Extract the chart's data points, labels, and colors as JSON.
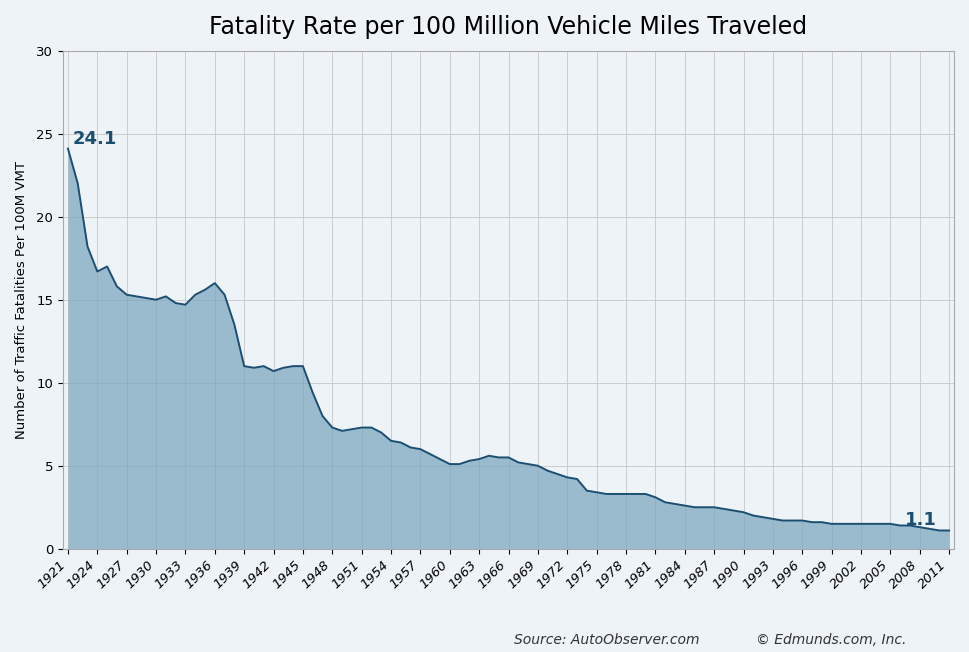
{
  "title": "Fatality Rate per 100 Million Vehicle Miles Traveled",
  "ylabel": "Number of Traffic Fatalities Per 100M VMT",
  "source_text": "Source: AutoObserver.com",
  "copyright_text": "© Edmunds.com, Inc.",
  "line_color": "#1B4F72",
  "fill_color": "#7EA7C0",
  "fill_alpha": 0.75,
  "bg_color": "#EEF3F8",
  "plot_bg_color": "#EEF3F8",
  "grid_color": "#CCCCCC",
  "annotation_color": "#1B4F72",
  "ylim": [
    0,
    30
  ],
  "yticks": [
    0,
    5,
    10,
    15,
    20,
    25,
    30
  ],
  "years": [
    1921,
    1922,
    1923,
    1924,
    1925,
    1926,
    1927,
    1928,
    1929,
    1930,
    1931,
    1932,
    1933,
    1934,
    1935,
    1936,
    1937,
    1938,
    1939,
    1940,
    1941,
    1942,
    1943,
    1944,
    1945,
    1946,
    1947,
    1948,
    1949,
    1950,
    1951,
    1952,
    1953,
    1954,
    1955,
    1956,
    1957,
    1958,
    1959,
    1960,
    1961,
    1962,
    1963,
    1964,
    1965,
    1966,
    1967,
    1968,
    1969,
    1970,
    1971,
    1972,
    1973,
    1974,
    1975,
    1976,
    1977,
    1978,
    1979,
    1980,
    1981,
    1982,
    1983,
    1984,
    1985,
    1986,
    1987,
    1988,
    1989,
    1990,
    1991,
    1992,
    1993,
    1994,
    1995,
    1996,
    1997,
    1998,
    1999,
    2000,
    2001,
    2002,
    2003,
    2004,
    2005,
    2006,
    2007,
    2008,
    2009,
    2010,
    2011
  ],
  "values": [
    24.1,
    22.0,
    18.2,
    16.7,
    17.0,
    15.8,
    15.3,
    15.2,
    15.1,
    15.0,
    15.2,
    14.8,
    14.7,
    15.3,
    15.6,
    16.0,
    15.3,
    13.5,
    11.0,
    10.9,
    11.0,
    10.7,
    10.9,
    11.0,
    11.0,
    9.4,
    8.0,
    7.3,
    7.1,
    7.2,
    7.3,
    7.3,
    7.0,
    6.5,
    6.4,
    6.1,
    6.0,
    5.7,
    5.4,
    5.1,
    5.1,
    5.3,
    5.4,
    5.6,
    5.5,
    5.5,
    5.2,
    5.1,
    5.0,
    4.7,
    4.5,
    4.3,
    4.2,
    3.5,
    3.4,
    3.3,
    3.3,
    3.3,
    3.3,
    3.3,
    3.1,
    2.8,
    2.7,
    2.6,
    2.5,
    2.5,
    2.5,
    2.4,
    2.3,
    2.2,
    2.0,
    1.9,
    1.8,
    1.7,
    1.7,
    1.7,
    1.6,
    1.6,
    1.5,
    1.5,
    1.5,
    1.5,
    1.5,
    1.5,
    1.5,
    1.4,
    1.4,
    1.3,
    1.2,
    1.1,
    1.1
  ],
  "annotation_start_label": "24.1",
  "annotation_end_label": "1.1",
  "title_fontsize": 17,
  "label_fontsize": 9.5,
  "tick_fontsize": 9.5,
  "annot_fontsize": 13
}
